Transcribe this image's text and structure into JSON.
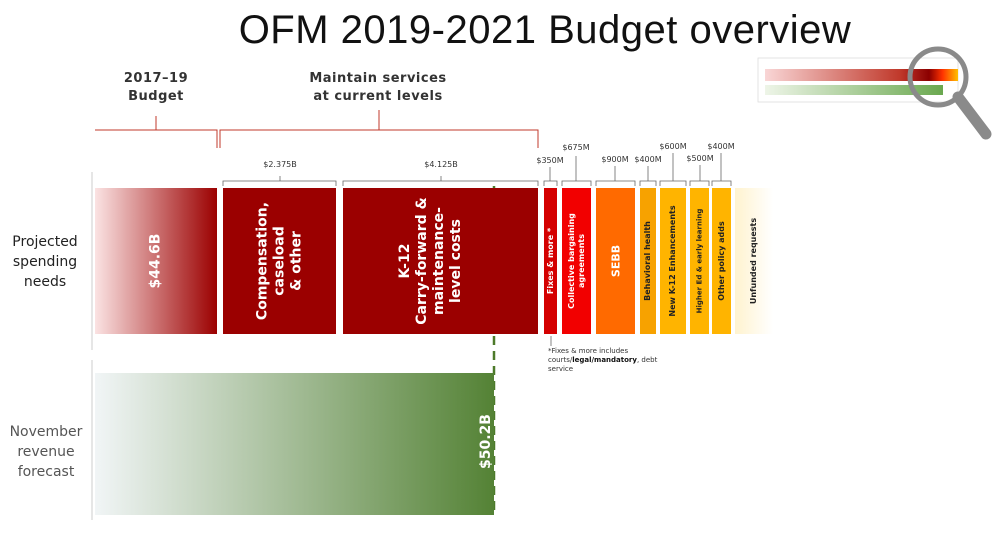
{
  "title": "OFM 2019-2021 Budget overview",
  "headers": {
    "budget_2017": [
      "2017–19",
      "Budget"
    ],
    "maintain": [
      "Maintain services",
      "at current levels"
    ]
  },
  "row_labels": {
    "spending": [
      "Projected",
      "spending",
      "needs"
    ],
    "revenue": [
      "November",
      "revenue",
      "forecast"
    ]
  },
  "amounts": {
    "compensation": "$2.375B",
    "k12": "$4.125B",
    "fixes": "$350M",
    "collective": "$675M",
    "sebb": "$900M",
    "behavioral": "$400M",
    "new_k12": "$600M",
    "higher_ed": "$500M",
    "other_policy": "$400M"
  },
  "bars": {
    "base": [
      "$44.6B"
    ],
    "compensation": [
      "Compensation,",
      "caseload",
      "& other"
    ],
    "k12": [
      "K-12",
      "Carry-forward &",
      "maintenance-",
      "level costs"
    ],
    "fixes": [
      "Fixes & more *"
    ],
    "collective": [
      "Collective bargaining",
      "agreements"
    ],
    "sebb": [
      "SEBB"
    ],
    "behavioral": [
      "Behavioral health"
    ],
    "new_k12": [
      "New K-12 Enhancements"
    ],
    "higher_ed": [
      "Higher Ed & early learning"
    ],
    "other_policy": [
      "Other policy adds"
    ],
    "unfunded": [
      "Unfunded requests"
    ],
    "revenue": [
      "$50.2B"
    ]
  },
  "footnote": {
    "line1": "*Fixes & more includes",
    "line2_pre": "courts/",
    "line2_bold": "legal/mandatory",
    "line2_post": ", debt",
    "line3": "service"
  },
  "colors": {
    "dark_red": "#9b0000",
    "red": "#f20000",
    "orange": "#ff6a00",
    "amber": "#f7a200",
    "gold": "#ffb400",
    "green": "#548235",
    "bracket_red": "#c0392b",
    "bracket_gray": "#666666",
    "dashed_green": "#4d7a2a",
    "magnifier": "#8a8a8a"
  }
}
